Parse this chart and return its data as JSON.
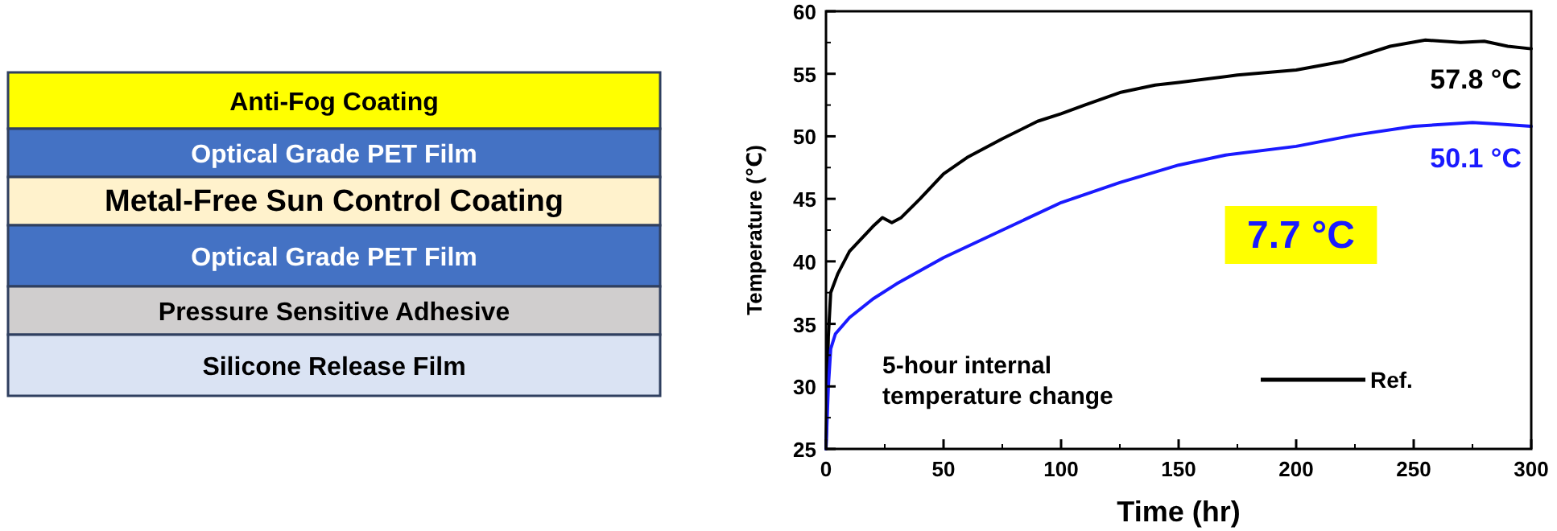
{
  "chart_data": [
    {
      "type": "other",
      "categories": [
        "Anti-Fog Coating",
        "Optical Grade PET Film",
        "Metal-Free Sun Control Coating",
        "Optical Grade PET Film",
        "Pressure Sensitive Adhesive",
        "Silicone Release Film"
      ],
      "colors": [
        "#ffff00",
        "#4472c4",
        "#fff2cc",
        "#4472c4",
        "#d0cece",
        "#dae3f3"
      ]
    },
    {
      "type": "line",
      "xlabel": "Time (hr)",
      "ylabel": "Temperature (℃)",
      "xlim": [
        0,
        300
      ],
      "xticks": [
        0,
        50,
        100,
        150,
        200,
        250,
        300
      ],
      "ylim": [
        25,
        60
      ],
      "yticks": [
        25,
        30,
        35,
        40,
        45,
        50,
        55,
        60
      ],
      "legend": "bottom right",
      "grid": false,
      "line_style": "solid",
      "annotations": [
        "57.8 °C",
        "50.1 °C",
        "7.7 °C",
        "5-hour internal temperature change"
      ],
      "series": [
        {
          "name": "Ref.",
          "color": "#000000",
          "x": [
            0,
            0.5,
            1,
            2,
            5,
            10,
            15,
            20,
            24,
            28,
            32,
            40,
            50,
            60,
            75,
            90,
            100,
            110,
            125,
            140,
            150,
            175,
            200,
            220,
            240,
            255,
            270,
            280,
            290,
            300
          ],
          "values": [
            25,
            30,
            34,
            37.5,
            39,
            40.8,
            41.8,
            42.8,
            43.5,
            43.1,
            43.5,
            45,
            47,
            48.3,
            49.8,
            51.2,
            51.8,
            52.5,
            53.5,
            54.1,
            54.3,
            54.9,
            55.3,
            56,
            57.2,
            57.7,
            57.5,
            57.6,
            57.2,
            57
          ]
        },
        {
          "color": "#1a1aff",
          "x": [
            0,
            1,
            2,
            4,
            10,
            20,
            30,
            50,
            75,
            100,
            125,
            150,
            170,
            200,
            225,
            250,
            275,
            285,
            300
          ],
          "values": [
            25,
            30,
            33,
            34.2,
            35.5,
            37,
            38.2,
            40.3,
            42.5,
            44.7,
            46.3,
            47.7,
            48.5,
            49.2,
            50.1,
            50.8,
            51.1,
            51,
            50.8
          ]
        }
      ]
    }
  ]
}
